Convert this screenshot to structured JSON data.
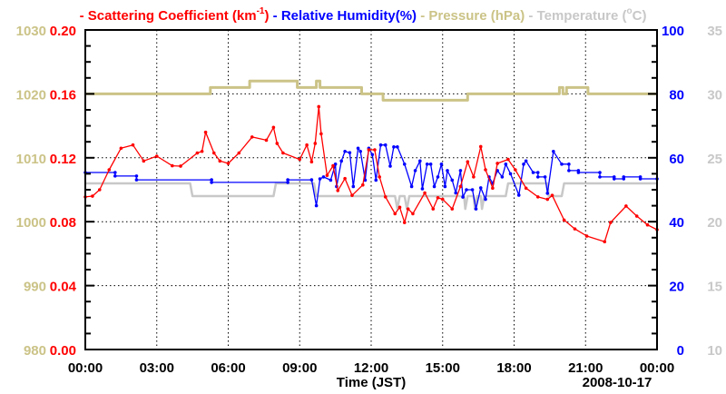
{
  "chart_data": {
    "type": "line",
    "legend": {
      "items": [
        {
          "dash": "-",
          "text": "Scattering Coefficient (km",
          "sup": "-1",
          "close": ")",
          "color": "#ff0000"
        },
        {
          "dash": "-",
          "text": "Relative Humidity(%)",
          "color": "#0000ff"
        },
        {
          "dash": "-",
          "text": "Pressure (hPa)",
          "color": "#cbc387"
        },
        {
          "dash": "-",
          "text": "Temperature (",
          "sup": "o",
          "close": "C)",
          "color": "#c8c8c8"
        }
      ],
      "placement": "top"
    },
    "xlabel": "Time (JST)",
    "date_label": "2008-10-17",
    "xlim": [
      0,
      24
    ],
    "x_ticks": [
      {
        "v": 0,
        "label": "00:00"
      },
      {
        "v": 3,
        "label": "03:00"
      },
      {
        "v": 6,
        "label": "06:00"
      },
      {
        "v": 9,
        "label": "09:00"
      },
      {
        "v": 12,
        "label": "12:00"
      },
      {
        "v": 15,
        "label": "15:00"
      },
      {
        "v": 18,
        "label": "18:00"
      },
      {
        "v": 21,
        "label": "21:00"
      },
      {
        "v": 24,
        "label": "00:00"
      }
    ],
    "axes": {
      "pressure": {
        "lim": [
          980,
          1030
        ],
        "ticks": [
          "980",
          "990",
          "1000",
          "1010",
          "1020",
          "1030"
        ],
        "color": "#cbc387"
      },
      "scattering": {
        "lim": [
          0,
          0.2
        ],
        "ticks": [
          "0.00",
          "0.04",
          "0.08",
          "0.12",
          "0.16",
          "0.20"
        ],
        "color": "#ff0000"
      },
      "humidity": {
        "lim": [
          0,
          100
        ],
        "ticks": [
          "0",
          "20",
          "40",
          "60",
          "80",
          "100"
        ],
        "color": "#0000ff"
      },
      "temperature": {
        "lim": [
          10,
          35
        ],
        "ticks": [
          "10",
          "15",
          "20",
          "25",
          "30",
          "35"
        ],
        "color": "#c8c8c8"
      }
    },
    "grid": true,
    "series": [
      {
        "name": "Pressure (hPa)",
        "axis": "pressure",
        "color": "#cbc387",
        "markers": false,
        "width": 3,
        "points": [
          [
            0,
            1020
          ],
          [
            5.25,
            1020
          ],
          [
            5.25,
            1021
          ],
          [
            6.9,
            1021
          ],
          [
            6.9,
            1022
          ],
          [
            8.9,
            1022
          ],
          [
            8.9,
            1021
          ],
          [
            9.7,
            1021
          ],
          [
            9.7,
            1022
          ],
          [
            9.85,
            1022
          ],
          [
            9.85,
            1021
          ],
          [
            11.6,
            1021
          ],
          [
            11.6,
            1020
          ],
          [
            12.5,
            1020
          ],
          [
            12.5,
            1019
          ],
          [
            16.05,
            1019
          ],
          [
            16.05,
            1020
          ],
          [
            19.9,
            1020
          ],
          [
            19.9,
            1021
          ],
          [
            20.05,
            1021
          ],
          [
            20.05,
            1020
          ],
          [
            20.2,
            1020
          ],
          [
            20.2,
            1021
          ],
          [
            21.1,
            1021
          ],
          [
            21.1,
            1020
          ],
          [
            24,
            1020
          ]
        ]
      },
      {
        "name": "Temperature (C)",
        "axis": "temperature",
        "color": "#c8c8c8",
        "markers": false,
        "width": 2.5,
        "points": [
          [
            0,
            23
          ],
          [
            4.4,
            23
          ],
          [
            4.5,
            22
          ],
          [
            7.9,
            22
          ],
          [
            8.0,
            23
          ],
          [
            9.6,
            23
          ],
          [
            9.7,
            22
          ],
          [
            13.0,
            22
          ],
          [
            13.1,
            21
          ],
          [
            13.2,
            22
          ],
          [
            13.4,
            22
          ],
          [
            13.5,
            21
          ],
          [
            13.6,
            22
          ],
          [
            15.9,
            22
          ],
          [
            15.95,
            21
          ],
          [
            16.05,
            22
          ],
          [
            16.3,
            22
          ],
          [
            16.35,
            21
          ],
          [
            16.45,
            22
          ],
          [
            16.6,
            22
          ],
          [
            16.65,
            21
          ],
          [
            16.75,
            22
          ],
          [
            17.65,
            22
          ],
          [
            17.75,
            23
          ],
          [
            19.4,
            23
          ],
          [
            19.45,
            22
          ],
          [
            20.0,
            22
          ],
          [
            20.1,
            23
          ],
          [
            24,
            23
          ]
        ]
      },
      {
        "name": "Relative Humidity(%)",
        "axis": "humidity",
        "color": "#0000ff",
        "markers": true,
        "width": 1.3,
        "points": [
          [
            0,
            55.4
          ],
          [
            1.25,
            55.4
          ],
          [
            1.25,
            54.3
          ],
          [
            2.15,
            54.3
          ],
          [
            2.15,
            53.1
          ],
          [
            5.3,
            53.1
          ],
          [
            5.3,
            52.3
          ],
          [
            8.5,
            52.3
          ],
          [
            8.5,
            53.1
          ],
          [
            9.5,
            53.1
          ],
          [
            9.7,
            45
          ],
          [
            9.85,
            53.4
          ],
          [
            10.0,
            54
          ],
          [
            10.3,
            53
          ],
          [
            10.5,
            58
          ],
          [
            10.55,
            51
          ],
          [
            10.75,
            59
          ],
          [
            10.9,
            62
          ],
          [
            11.1,
            61.6
          ],
          [
            11.25,
            51
          ],
          [
            11.45,
            63
          ],
          [
            11.55,
            62
          ],
          [
            11.75,
            53
          ],
          [
            11.9,
            63
          ],
          [
            12.05,
            61
          ],
          [
            12.2,
            53
          ],
          [
            12.4,
            64
          ],
          [
            12.6,
            64
          ],
          [
            12.8,
            57.4
          ],
          [
            12.95,
            63.4
          ],
          [
            13.1,
            63.4
          ],
          [
            13.4,
            58
          ],
          [
            13.7,
            51
          ],
          [
            13.85,
            56
          ],
          [
            14.05,
            59
          ],
          [
            14.15,
            50.3
          ],
          [
            14.35,
            58
          ],
          [
            14.5,
            58
          ],
          [
            14.65,
            51
          ],
          [
            14.8,
            54
          ],
          [
            14.95,
            58
          ],
          [
            15.1,
            51
          ],
          [
            15.2,
            56
          ],
          [
            15.4,
            53
          ],
          [
            15.55,
            49
          ],
          [
            15.75,
            56
          ],
          [
            15.85,
            47.7
          ],
          [
            16.0,
            50
          ],
          [
            16.25,
            50
          ],
          [
            16.4,
            44
          ],
          [
            16.6,
            50.6
          ],
          [
            16.8,
            47
          ],
          [
            16.95,
            54
          ],
          [
            17.1,
            52
          ],
          [
            17.3,
            56
          ],
          [
            17.5,
            54
          ],
          [
            17.65,
            58
          ],
          [
            17.85,
            55
          ],
          [
            18.2,
            48.3
          ],
          [
            18.4,
            58
          ],
          [
            18.5,
            59
          ],
          [
            18.8,
            55.4
          ],
          [
            19.0,
            55.4
          ],
          [
            19.0,
            54
          ],
          [
            19.3,
            54
          ],
          [
            19.4,
            48.9
          ],
          [
            19.65,
            62
          ],
          [
            20.0,
            58
          ],
          [
            20.3,
            58
          ],
          [
            20.3,
            56
          ],
          [
            20.7,
            56
          ],
          [
            20.7,
            55.4
          ],
          [
            21.6,
            55.4
          ],
          [
            21.6,
            54
          ],
          [
            22.2,
            54
          ],
          [
            22.2,
            53.4
          ],
          [
            22.6,
            53.4
          ],
          [
            22.6,
            54
          ],
          [
            23.3,
            54
          ],
          [
            23.3,
            53.4
          ],
          [
            24,
            53.4
          ]
        ]
      },
      {
        "name": "Scattering Coefficient (km-1)",
        "axis": "scattering",
        "color": "#ff0000",
        "markers": true,
        "width": 1.3,
        "points": [
          [
            0,
            0.0955
          ],
          [
            0.3,
            0.096
          ],
          [
            0.6,
            0.1
          ],
          [
            1.0,
            0.1125
          ],
          [
            1.5,
            0.126
          ],
          [
            2.0,
            0.128
          ],
          [
            2.45,
            0.118
          ],
          [
            3.0,
            0.121
          ],
          [
            3.65,
            0.115
          ],
          [
            4.0,
            0.1148
          ],
          [
            4.7,
            0.123
          ],
          [
            4.9,
            0.124
          ],
          [
            5.05,
            0.136
          ],
          [
            5.4,
            0.123
          ],
          [
            5.65,
            0.118
          ],
          [
            6.0,
            0.1165
          ],
          [
            6.45,
            0.123
          ],
          [
            7.0,
            0.133
          ],
          [
            7.6,
            0.131
          ],
          [
            7.9,
            0.139
          ],
          [
            8.05,
            0.129
          ],
          [
            8.3,
            0.123
          ],
          [
            9.0,
            0.119
          ],
          [
            9.3,
            0.128
          ],
          [
            9.5,
            0.1175
          ],
          [
            9.65,
            0.129
          ],
          [
            9.8,
            0.152
          ],
          [
            9.9,
            0.135
          ],
          [
            10.15,
            0.109
          ],
          [
            10.4,
            0.115
          ],
          [
            10.6,
            0.0995
          ],
          [
            10.9,
            0.107
          ],
          [
            11.2,
            0.0965
          ],
          [
            11.65,
            0.103
          ],
          [
            11.9,
            0.125
          ],
          [
            12.15,
            0.125
          ],
          [
            12.35,
            0.108
          ],
          [
            12.6,
            0.0955
          ],
          [
            13.0,
            0.085
          ],
          [
            13.2,
            0.089
          ],
          [
            13.4,
            0.0795
          ],
          [
            13.55,
            0.088
          ],
          [
            13.75,
            0.085
          ],
          [
            14.25,
            0.098
          ],
          [
            14.6,
            0.088
          ],
          [
            14.8,
            0.095
          ],
          [
            15.0,
            0.094
          ],
          [
            15.4,
            0.088
          ],
          [
            15.75,
            0.102
          ],
          [
            16.05,
            0.1175
          ],
          [
            16.3,
            0.108
          ],
          [
            16.6,
            0.127
          ],
          [
            16.8,
            0.1125
          ],
          [
            17.1,
            0.101
          ],
          [
            17.3,
            0.1165
          ],
          [
            17.75,
            0.119
          ],
          [
            18.05,
            0.1125
          ],
          [
            18.5,
            0.101
          ],
          [
            19.0,
            0.0955
          ],
          [
            19.4,
            0.094
          ],
          [
            19.6,
            0.0965
          ],
          [
            20.1,
            0.081
          ],
          [
            20.55,
            0.0755
          ],
          [
            21.05,
            0.071
          ],
          [
            21.8,
            0.0675
          ],
          [
            22.05,
            0.0795
          ],
          [
            22.7,
            0.0898
          ],
          [
            23.15,
            0.0835
          ],
          [
            23.6,
            0.078
          ],
          [
            24,
            0.075
          ]
        ]
      }
    ]
  }
}
